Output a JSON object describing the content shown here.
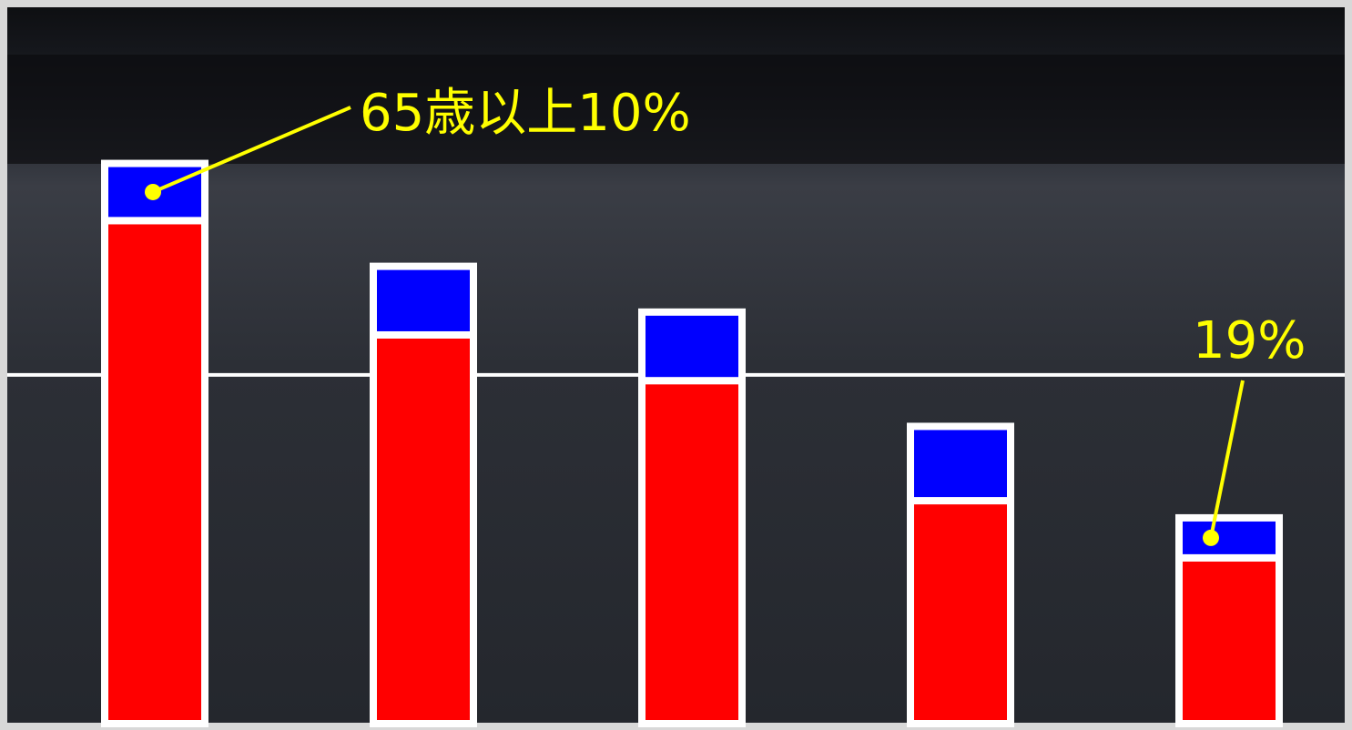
{
  "chart_data": {
    "type": "stacked_bar",
    "categories": [
      null,
      null,
      null,
      null,
      null
    ],
    "series": [
      {
        "color": "#ff0000",
        "values": [
          88,
          68,
          60,
          39,
          29
        ]
      },
      {
        "color": "#0000ff",
        "values": [
          10,
          12,
          12,
          13,
          7
        ]
      }
    ],
    "ylim": [
      0,
      125
    ],
    "reference_line": 61,
    "annotations": [
      "65歳以上10%",
      "19%"
    ],
    "annotation_color": "#ffff00"
  }
}
